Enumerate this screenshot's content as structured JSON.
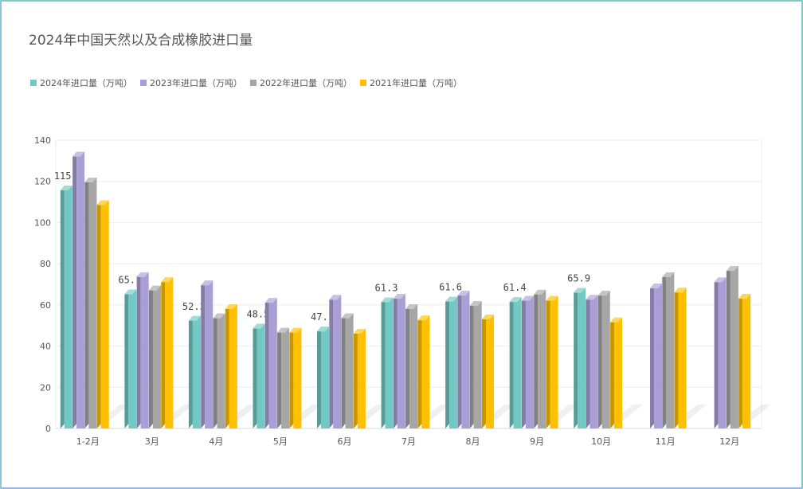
{
  "title": "2024年中国天然以及合成橡胶进口量",
  "chart_data": {
    "type": "bar",
    "title": "2024年中国天然以及合成橡胶进口量",
    "categories": [
      "1-2月",
      "3月",
      "4月",
      "5月",
      "6月",
      "7月",
      "8月",
      "9月",
      "10月",
      "11月",
      "12月"
    ],
    "series": [
      {
        "name": "2024年进口量（万吨）",
        "color": "#72c8c2",
        "values": [
          115.6,
          65.1,
          52.3,
          48.5,
          47.1,
          61.3,
          61.6,
          61.4,
          65.9,
          null,
          null
        ]
      },
      {
        "name": "2023年进口量（万吨）",
        "color": "#a99fd6",
        "values": [
          132,
          73.5,
          69.5,
          61,
          62.5,
          63,
          64.5,
          62,
          62.5,
          68,
          71
        ]
      },
      {
        "name": "2022年进口量（万吨）",
        "color": "#a6a6a6",
        "values": [
          119.5,
          67,
          53.5,
          46.5,
          53.5,
          58,
          59.5,
          65,
          64.5,
          73.5,
          76.5
        ]
      },
      {
        "name": "2021年进口量（万吨）",
        "color": "#ffc000",
        "values": [
          108.5,
          71,
          58,
          46.5,
          46,
          52.5,
          53,
          62,
          51.5,
          66,
          63
        ]
      }
    ],
    "data_labels_series": 0,
    "ylim": [
      0,
      140
    ],
    "yticks": [
      0,
      20,
      40,
      60,
      80,
      100,
      120,
      140
    ],
    "grid": true,
    "legend_position": "top-left",
    "style": "3d-bar"
  }
}
